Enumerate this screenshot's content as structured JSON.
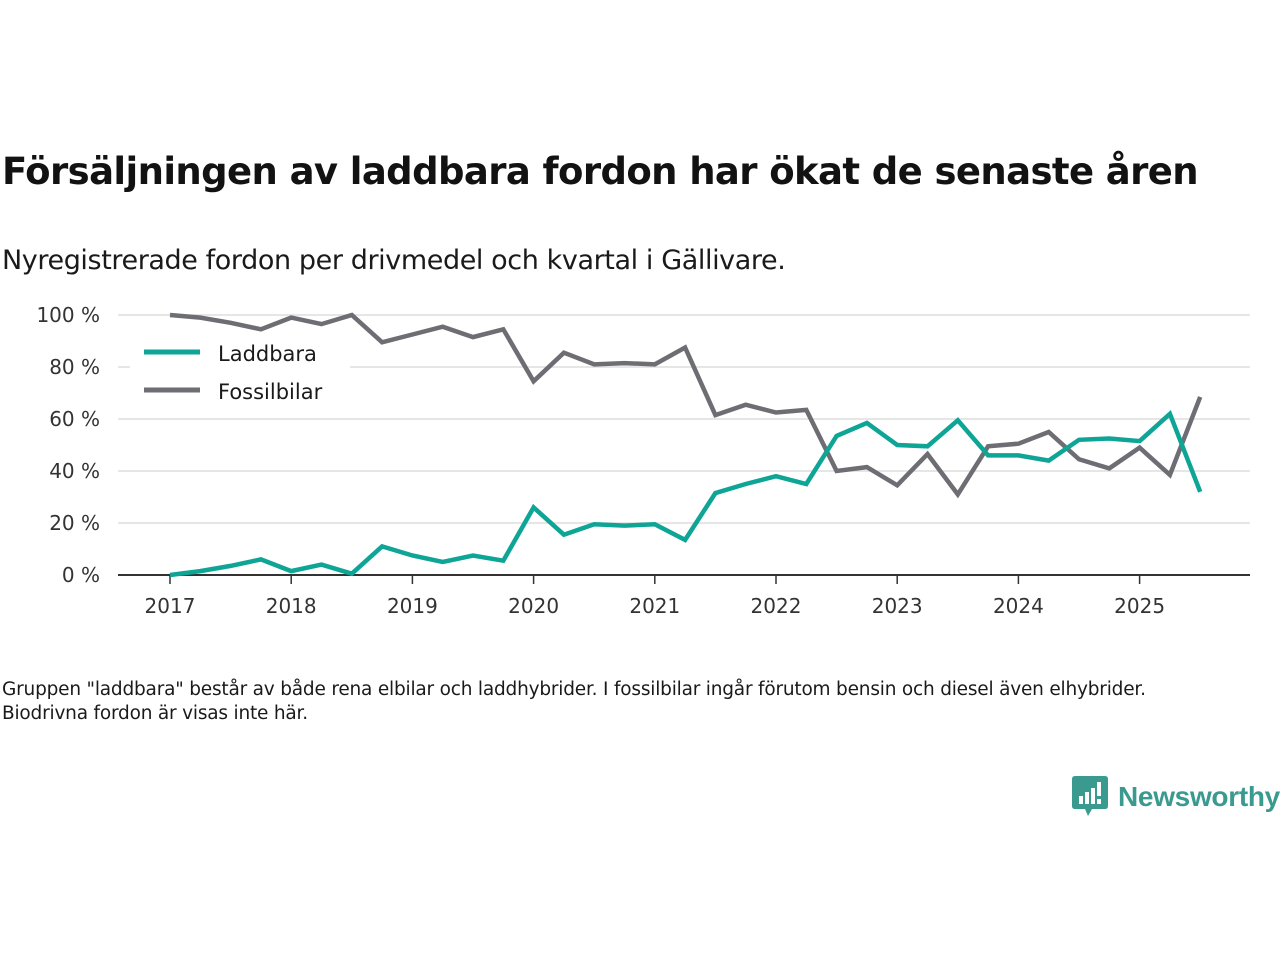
{
  "header": {
    "title": "Försäljningen av laddbara fordon har ökat de senaste åren",
    "subtitle": "Nyregistrerade fordon per drivmedel och kvartal i Gällivare."
  },
  "footnote": "Gruppen \"laddbara\" består av både rena elbilar och laddhybrider. I fossilbilar ingår förutom bensin och diesel även elhybrider. Biodrivna fordon är visas inte här.",
  "logo": {
    "text": "Newsworthy",
    "color": "#3a9a8f",
    "icon": "chart-bubble-icon"
  },
  "chart_data": {
    "type": "line",
    "title": "Försäljningen av laddbara fordon har ökat de senaste åren",
    "subtitle": "Nyregistrerade fordon per drivmedel och kvartal i Gällivare.",
    "xlabel": "",
    "ylabel": "",
    "x_start": 2017.0,
    "x_step": 0.25,
    "xlim": [
      2016.6,
      2025.9
    ],
    "ylim": [
      0,
      100
    ],
    "x_ticks": [
      2017,
      2018,
      2019,
      2020,
      2021,
      2022,
      2023,
      2024,
      2025
    ],
    "x_tick_labels": [
      "2017",
      "2018",
      "2019",
      "2020",
      "2021",
      "2022",
      "2023",
      "2024",
      "2025"
    ],
    "y_ticks": [
      0,
      20,
      40,
      60,
      80,
      100
    ],
    "y_tick_labels": [
      "0 %",
      "20 %",
      "40 %",
      "60 %",
      "80 %",
      "100 %"
    ],
    "grid": true,
    "legend_position": "top-left",
    "series": [
      {
        "name": "Laddbara",
        "color": "#0ea597",
        "values": [
          0,
          1.5,
          3.5,
          6,
          1.5,
          4,
          0.5,
          11,
          7.5,
          5,
          7.5,
          5.5,
          26,
          15.5,
          19.5,
          19,
          19.5,
          13.5,
          31.5,
          35,
          38,
          35,
          53.5,
          58.5,
          50,
          49.5,
          59.5,
          46,
          46,
          44,
          52,
          52.5,
          51.5,
          62,
          32
        ]
      },
      {
        "name": "Fossilbilar",
        "color": "#6e6d73",
        "values": [
          100,
          99,
          97,
          94.5,
          99,
          96.5,
          100,
          89.5,
          92.5,
          95.5,
          91.5,
          94.5,
          74.5,
          85.5,
          81,
          81.5,
          81,
          87.5,
          61.5,
          65.5,
          62.5,
          63.5,
          40,
          41.5,
          34.5,
          46.5,
          31,
          49.5,
          50.5,
          55,
          44.5,
          41,
          49,
          38.5,
          68.5
        ]
      }
    ]
  }
}
